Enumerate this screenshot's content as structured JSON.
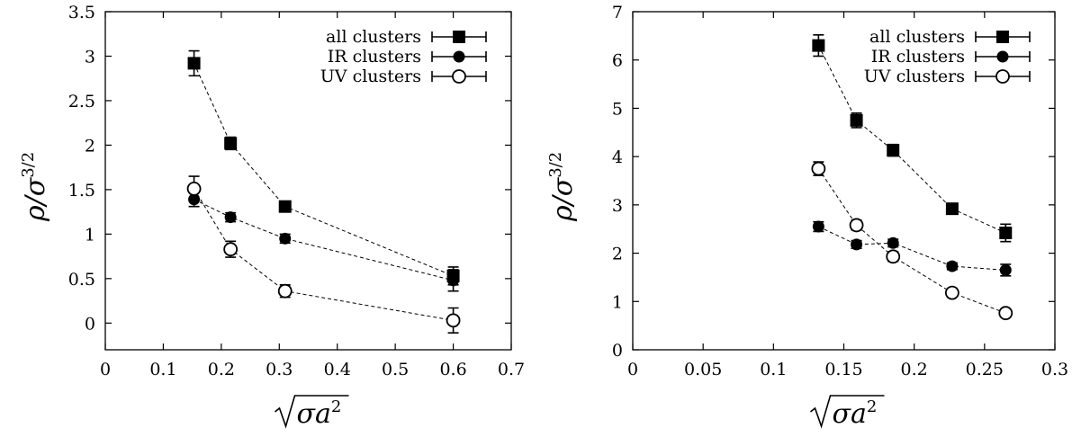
{
  "chart_data": [
    {
      "type": "scatter",
      "xlabel": "√(σa²)",
      "ylabel": "ρ/σ^{3/2}",
      "xlim": [
        0,
        0.7
      ],
      "ylim": [
        -0.3,
        3.5
      ],
      "xticks": [
        "0",
        "0.1",
        "0.2",
        "0.3",
        "0.4",
        "0.5",
        "0.6",
        "0.7"
      ],
      "yticks": [
        "0",
        "0.5",
        "1",
        "1.5",
        "2",
        "2.5",
        "3",
        "3.5"
      ],
      "legend_position": "top-right",
      "grid": false,
      "series": [
        {
          "name": "all clusters",
          "marker": "filled-square",
          "x": [
            0.153,
            0.216,
            0.31,
            0.6
          ],
          "y": [
            2.92,
            2.02,
            1.31,
            0.53
          ],
          "err": [
            0.14,
            0.07,
            0.06,
            0.1
          ]
        },
        {
          "name": "IR clusters",
          "marker": "filled-circle",
          "x": [
            0.153,
            0.216,
            0.31,
            0.6
          ],
          "y": [
            1.39,
            1.19,
            0.95,
            0.48
          ],
          "err": [
            0.08,
            0.05,
            0.05,
            0.12
          ]
        },
        {
          "name": "UV clusters",
          "marker": "open-circle",
          "x": [
            0.153,
            0.216,
            0.31,
            0.6
          ],
          "y": [
            1.51,
            0.83,
            0.36,
            0.03
          ],
          "err": [
            0.14,
            0.09,
            0.07,
            0.14
          ]
        }
      ]
    },
    {
      "type": "scatter",
      "xlabel": "√(σa²)",
      "ylabel": "ρ/σ^{3/2}",
      "xlim": [
        0,
        0.3
      ],
      "ylim": [
        0,
        7
      ],
      "xticks": [
        "0",
        "0.05",
        "0.1",
        "0.15",
        "0.2",
        "0.25",
        "0.3"
      ],
      "yticks": [
        "0",
        "1",
        "2",
        "3",
        "4",
        "5",
        "6",
        "7"
      ],
      "legend_position": "top-right",
      "grid": false,
      "series": [
        {
          "name": "all clusters",
          "marker": "filled-square",
          "x": [
            0.132,
            0.159,
            0.185,
            0.227,
            0.265
          ],
          "y": [
            6.3,
            4.75,
            4.13,
            2.92,
            2.42
          ],
          "err": [
            0.22,
            0.15,
            0.12,
            0.08,
            0.18
          ]
        },
        {
          "name": "IR clusters",
          "marker": "filled-circle",
          "x": [
            0.132,
            0.159,
            0.185,
            0.227,
            0.265
          ],
          "y": [
            2.55,
            2.18,
            2.21,
            1.73,
            1.65
          ],
          "err": [
            0.1,
            0.08,
            0.08,
            0.07,
            0.12
          ]
        },
        {
          "name": "UV clusters",
          "marker": "open-circle",
          "x": [
            0.132,
            0.159,
            0.185,
            0.227,
            0.265
          ],
          "y": [
            3.75,
            2.58,
            1.93,
            1.18,
            0.76
          ],
          "err": [
            0.14,
            0.1,
            0.1,
            0.08,
            0.08
          ]
        }
      ]
    }
  ]
}
